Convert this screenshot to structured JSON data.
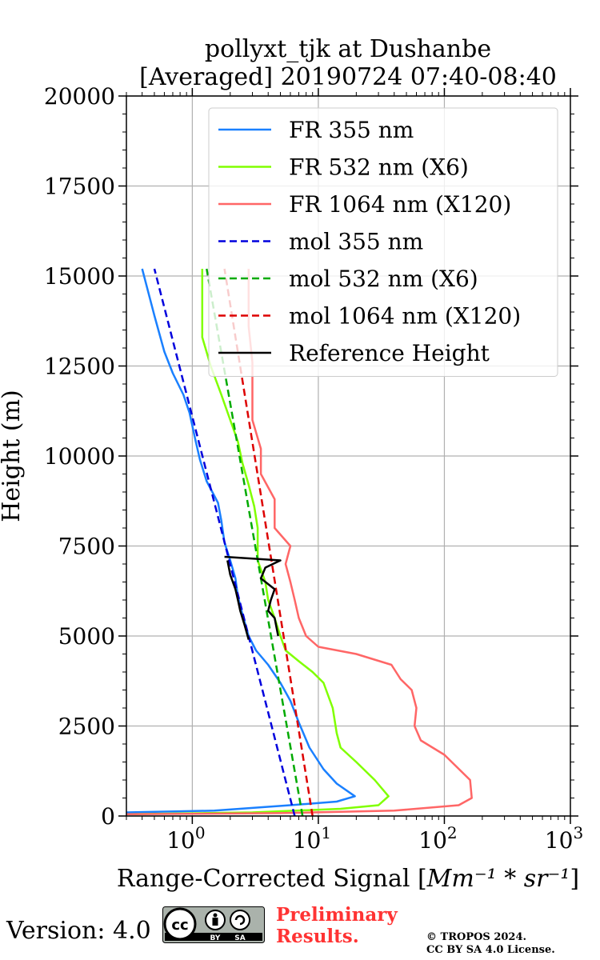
{
  "chart_data": {
    "type": "line",
    "title": "pollyxt_tjk at Dushanbe",
    "subtitle": "[Averaged] 20190724 07:40-08:40",
    "xlabel": "Range-Corrected Signal [$Mm^{-1}*sr^{-1}$]",
    "xlabel_text": "Range-Corrected Signal [",
    "xlabel_math": "Mm⁻¹ * sr⁻¹",
    "xlabel_close": "]",
    "ylabel": "Height (m)",
    "xscale": "log",
    "xlim": [
      0.3,
      1000
    ],
    "ylim": [
      0,
      20000
    ],
    "grid": true,
    "legend_position": "top-right",
    "yticks": [
      "0",
      "2500",
      "5000",
      "7500",
      "10000",
      "12500",
      "15000",
      "17500",
      "20000"
    ],
    "xticks": [
      {
        "base": "10",
        "exp": "0",
        "value": 1
      },
      {
        "base": "10",
        "exp": "1",
        "value": 10
      },
      {
        "base": "10",
        "exp": "2",
        "value": 100
      },
      {
        "base": "10",
        "exp": "3",
        "value": 1000
      }
    ],
    "series": [
      {
        "name": "FR 355 nm",
        "color": "#1a80ff",
        "style": "solid",
        "x": [
          0.3,
          1.5,
          6,
          14,
          19.5,
          14,
          11,
          8.5,
          7,
          6,
          5,
          4,
          3.2,
          2.8,
          2.5,
          2.3,
          2.2,
          2.0,
          1.8,
          1.7,
          1.6,
          1.3,
          1.15,
          1.05,
          0.95,
          0.85,
          0.7,
          0.6,
          0.5,
          0.4
        ],
        "y": [
          100,
          150,
          300,
          400,
          550,
          900,
          1300,
          1900,
          2600,
          3200,
          3700,
          4200,
          4600,
          5000,
          5600,
          6100,
          6600,
          7100,
          7600,
          8200,
          8700,
          9300,
          9900,
          10500,
          11200,
          11700,
          12300,
          12900,
          13900,
          15200
        ]
      },
      {
        "name": "FR 532 nm (X6)",
        "color": "#80ff00",
        "style": "solid",
        "x": [
          0.3,
          3,
          15,
          30,
          36,
          28,
          20,
          15,
          14,
          13,
          11,
          9,
          7,
          5.5,
          5,
          4.5,
          4,
          3.8,
          3.3,
          3.3,
          3.3,
          3.1,
          2.8,
          2.5,
          2.3,
          2.0,
          1.7,
          1.4,
          1.2,
          1.2
        ],
        "y": [
          50,
          100,
          200,
          300,
          550,
          1000,
          1500,
          1900,
          2300,
          3000,
          3700,
          4000,
          4300,
          4600,
          5000,
          5500,
          6000,
          6500,
          7100,
          7600,
          8000,
          8600,
          9200,
          9800,
          10400,
          11000,
          11700,
          12500,
          13300,
          15200
        ]
      },
      {
        "name": "FR 1064 nm (X120)",
        "color": "#ff6666",
        "style": "solid",
        "x": [
          0.3,
          5,
          40,
          130,
          165,
          160,
          100,
          65,
          58,
          60,
          55,
          45,
          38,
          20,
          10,
          8,
          7,
          6.5,
          6,
          5.5,
          6,
          4.5,
          4.5,
          3.5,
          3.5,
          3,
          3,
          3,
          2.8,
          2.8
        ],
        "y": [
          50,
          80,
          150,
          300,
          500,
          1000,
          1700,
          2100,
          2500,
          3000,
          3500,
          3800,
          4200,
          4500,
          4700,
          5000,
          5500,
          6000,
          6500,
          7000,
          7500,
          8000,
          8800,
          9500,
          10200,
          11000,
          11800,
          12600,
          13600,
          15200
        ]
      },
      {
        "name": "mol 355 nm",
        "color": "#0000dd",
        "style": "dashed",
        "x": [
          6.5,
          0.5
        ],
        "y": [
          0,
          15200
        ]
      },
      {
        "name": "mol 532 nm (X6)",
        "color": "#00aa00",
        "style": "dashed",
        "x": [
          7.5,
          1.3
        ],
        "y": [
          0,
          15200
        ]
      },
      {
        "name": "mol 1064 nm (X120)",
        "color": "#dd0000",
        "style": "dashed",
        "x": [
          9.0,
          1.8
        ],
        "y": [
          0,
          15200
        ]
      },
      {
        "name": "Reference Height",
        "color": "#000000",
        "style": "solid",
        "x": [
          4.8,
          4.5,
          4.0,
          4.2,
          4.5,
          3.5,
          3.8,
          5.0,
          1.8
        ],
        "y": [
          5000,
          5500,
          5700,
          6000,
          6300,
          6600,
          6900,
          7100,
          7200
        ]
      },
      {
        "name": "Reference Height",
        "color": "#000000",
        "style": "solid",
        "x": [
          2.8,
          2.6,
          2.4,
          2.3,
          2.2,
          2.0,
          1.9
        ],
        "y": [
          4900,
          5300,
          5700,
          6000,
          6300,
          6700,
          7100
        ]
      }
    ]
  },
  "footer": {
    "version": "Version: 4.0",
    "cc_label": "cc",
    "by_label": "BY",
    "sa_label": "SA",
    "prelim_line1": "Preliminary",
    "prelim_line2": "Results.",
    "copyright_line1": "© TROPOS 2024.",
    "copyright_line2": "CC BY SA 4.0 License."
  }
}
